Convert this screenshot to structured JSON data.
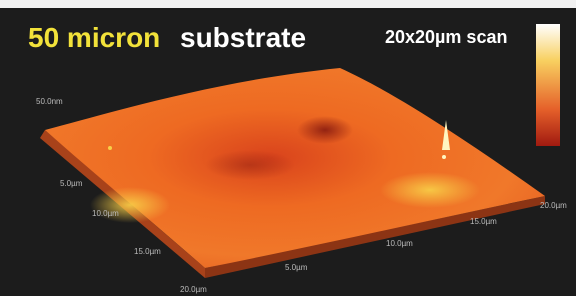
{
  "title": {
    "highlight": "50 micron",
    "rest": "substrate"
  },
  "scan_size": "20x20µm scan",
  "z_label": "50.0nm",
  "left_axis": [
    "5.0µm",
    "10.0µm",
    "15.0µm",
    "20.0µm"
  ],
  "front_axis": [
    "5.0µm",
    "10.0µm",
    "15.0µm",
    "20.0µm"
  ]
}
